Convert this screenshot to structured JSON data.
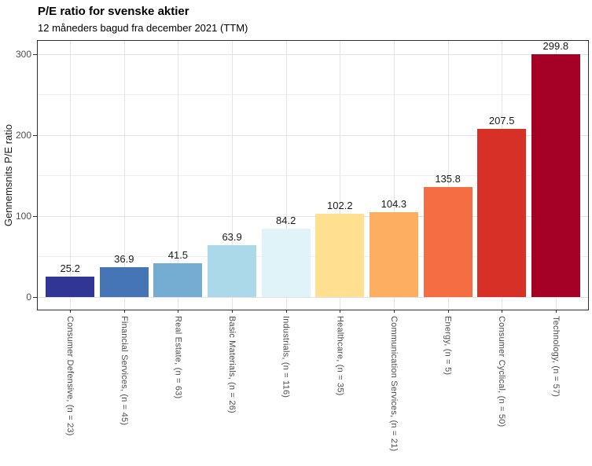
{
  "chart_data": {
    "type": "bar",
    "title": "P/E ratio for svenske aktier",
    "subtitle": "12 måneders bagud fra december 2021 (TTM)",
    "ylabel": "Gennemsnits P/E ratio",
    "xlabel": "",
    "categories": [
      "Consumer Defensive, (n = 23)",
      "Financial Services, (n = 45)",
      "Real Estate, (n = 63)",
      "Basic Materials, (n = 26)",
      "Industrials, (n = 116)",
      "Healthcare, (n = 35)",
      "Communication Services, (n = 21)",
      "Energy, (n = 5)",
      "Consumer Cyclical, (n = 50)",
      "Technology, (n = 57)"
    ],
    "values": [
      25.2,
      36.9,
      41.5,
      63.9,
      84.2,
      102.2,
      104.3,
      135.8,
      207.5,
      299.8
    ],
    "value_labels": [
      "25.2",
      "36.9",
      "41.5",
      "63.9",
      "84.2",
      "102.2",
      "104.3",
      "135.8",
      "207.5",
      "299.8"
    ],
    "bar_colors": [
      "#313695",
      "#4575B4",
      "#74ADD1",
      "#ABD9E9",
      "#E0F3F8",
      "#FEE090",
      "#FDAE61",
      "#F46D43",
      "#D73027",
      "#A50026"
    ],
    "yticks": [
      0,
      100,
      200,
      300
    ],
    "minor_yticks": [
      50,
      150,
      250
    ],
    "ylim": [
      0,
      316
    ],
    "grid": true,
    "legend": "none",
    "value_labels_shown": true
  },
  "colors": {
    "grid_major": "#e2e2e2",
    "grid_minor": "#efefef",
    "grid_vertical": "#e4e4e4",
    "axis_text": "#4d4d4d",
    "panel_border": "#2f2f2f",
    "value_label_text": "#1a1a1a",
    "background": "#ffffff"
  }
}
